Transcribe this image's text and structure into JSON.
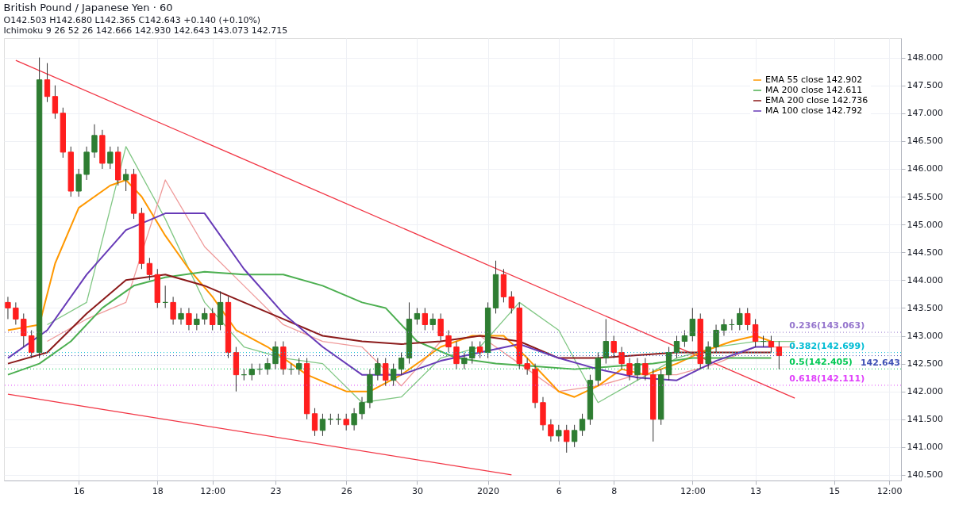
{
  "chart_data": {
    "type": "candlestick",
    "title": "British Pound / Japanese Yen · 60",
    "annotations": [
      "O142.503 H142.680 L142.365 C142.643 +0.140 (+0.10%)",
      "Ichimoku 9 26 52 26 142.666 142.930 142.643 143.073 142.715"
    ],
    "categories": [
      null,
      null,
      null,
      null,
      null,
      null,
      null,
      null,
      null,
      "16",
      null,
      null,
      null,
      null,
      null,
      null,
      null,
      null,
      null,
      "18",
      null,
      null,
      null,
      null,
      null,
      null,
      "12:00",
      null,
      null,
      null,
      null,
      null,
      null,
      null,
      "23",
      null,
      null,
      null,
      null,
      null,
      null,
      null,
      null,
      "26",
      null,
      null,
      null,
      null,
      null,
      null,
      null,
      null,
      "30",
      null,
      null,
      null,
      null,
      null,
      null,
      null,
      null,
      "2020",
      null,
      null,
      null,
      null,
      null,
      null,
      null,
      null,
      "6",
      null,
      null,
      null,
      null,
      null,
      null,
      "8",
      null,
      null,
      null,
      null,
      null,
      null,
      null,
      null,
      null,
      "12:00",
      null,
      null,
      null,
      null,
      null,
      null,
      null,
      "13",
      null,
      null,
      null,
      null,
      null,
      null,
      null,
      null,
      null,
      "15",
      null,
      null,
      null,
      null,
      null,
      null,
      "12:00",
      null
    ],
    "ohlc": [
      [
        143.6,
        143.7,
        143.3,
        143.5
      ],
      [
        143.5,
        143.6,
        143.2,
        143.3
      ],
      [
        143.3,
        143.4,
        142.8,
        143.0
      ],
      [
        143.0,
        143.1,
        142.6,
        142.7
      ],
      [
        142.7,
        148.0,
        142.6,
        147.6
      ],
      [
        147.6,
        147.9,
        147.2,
        147.3
      ],
      [
        147.3,
        147.5,
        146.9,
        147.0
      ],
      [
        147.0,
        147.1,
        146.2,
        146.3
      ],
      [
        146.3,
        146.4,
        145.5,
        145.6
      ],
      [
        145.6,
        146.0,
        145.5,
        145.9
      ],
      [
        145.9,
        146.4,
        145.8,
        146.3
      ],
      [
        146.3,
        146.8,
        146.2,
        146.6
      ],
      [
        146.6,
        146.7,
        146.0,
        146.1
      ],
      [
        146.1,
        146.4,
        146.0,
        146.3
      ],
      [
        146.3,
        146.4,
        145.7,
        145.8
      ],
      [
        145.8,
        146.0,
        145.6,
        145.9
      ],
      [
        145.9,
        146.0,
        145.1,
        145.2
      ],
      [
        145.2,
        145.3,
        144.2,
        144.3
      ],
      [
        144.3,
        144.4,
        144.0,
        144.1
      ],
      [
        144.1,
        144.2,
        143.5,
        143.6
      ],
      [
        143.6,
        143.9,
        143.5,
        143.6
      ],
      [
        143.6,
        143.7,
        143.2,
        143.3
      ],
      [
        143.3,
        143.5,
        143.2,
        143.4
      ],
      [
        143.4,
        143.5,
        143.1,
        143.2
      ],
      [
        143.2,
        143.4,
        143.1,
        143.3
      ],
      [
        143.3,
        143.5,
        143.2,
        143.4
      ],
      [
        143.4,
        143.5,
        143.1,
        143.2
      ],
      [
        143.2,
        143.8,
        143.1,
        143.6
      ],
      [
        143.6,
        143.7,
        142.6,
        142.7
      ],
      [
        142.7,
        142.8,
        142.0,
        142.3
      ],
      [
        142.3,
        142.4,
        142.2,
        142.3
      ],
      [
        142.3,
        142.5,
        142.2,
        142.4
      ],
      [
        142.4,
        142.5,
        142.3,
        142.4
      ],
      [
        142.4,
        142.6,
        142.3,
        142.5
      ],
      [
        142.5,
        142.9,
        142.4,
        142.8
      ],
      [
        142.8,
        142.9,
        142.3,
        142.4
      ],
      [
        142.4,
        142.5,
        142.3,
        142.4
      ],
      [
        142.4,
        142.6,
        142.3,
        142.5
      ],
      [
        142.5,
        142.6,
        141.5,
        141.6
      ],
      [
        141.6,
        141.7,
        141.2,
        141.3
      ],
      [
        141.3,
        141.6,
        141.2,
        141.5
      ],
      [
        141.5,
        141.6,
        141.4,
        141.5
      ],
      [
        141.5,
        141.6,
        141.4,
        141.5
      ],
      [
        141.5,
        141.6,
        141.3,
        141.4
      ],
      [
        141.4,
        141.7,
        141.3,
        141.6
      ],
      [
        141.6,
        141.9,
        141.5,
        141.8
      ],
      [
        141.8,
        142.4,
        141.7,
        142.3
      ],
      [
        142.3,
        142.6,
        142.2,
        142.5
      ],
      [
        142.5,
        142.6,
        142.1,
        142.2
      ],
      [
        142.2,
        142.5,
        142.1,
        142.4
      ],
      [
        142.4,
        142.7,
        142.3,
        142.6
      ],
      [
        142.6,
        143.6,
        142.5,
        143.3
      ],
      [
        143.3,
        143.5,
        143.2,
        143.4
      ],
      [
        143.4,
        143.5,
        143.1,
        143.2
      ],
      [
        143.2,
        143.4,
        143.1,
        143.3
      ],
      [
        143.3,
        143.4,
        142.9,
        143.0
      ],
      [
        143.0,
        143.1,
        142.7,
        142.8
      ],
      [
        142.8,
        142.9,
        142.4,
        142.5
      ],
      [
        142.5,
        142.7,
        142.4,
        142.6
      ],
      [
        142.6,
        142.9,
        142.5,
        142.8
      ],
      [
        142.8,
        142.9,
        142.6,
        142.7
      ],
      [
        142.7,
        143.6,
        142.6,
        143.5
      ],
      [
        143.5,
        144.35,
        143.4,
        144.1
      ],
      [
        144.1,
        144.2,
        143.6,
        143.7
      ],
      [
        143.7,
        143.8,
        143.4,
        143.5
      ],
      [
        143.5,
        143.6,
        142.4,
        142.5
      ],
      [
        142.5,
        142.6,
        142.3,
        142.4
      ],
      [
        142.4,
        142.5,
        141.7,
        141.8
      ],
      [
        141.8,
        141.9,
        141.3,
        141.4
      ],
      [
        141.4,
        141.5,
        141.1,
        141.2
      ],
      [
        141.2,
        141.4,
        141.1,
        141.3
      ],
      [
        141.3,
        141.4,
        140.9,
        141.1
      ],
      [
        141.1,
        141.4,
        141.0,
        141.3
      ],
      [
        141.3,
        141.6,
        141.2,
        141.5
      ],
      [
        141.5,
        142.3,
        141.4,
        142.2
      ],
      [
        142.2,
        142.7,
        142.1,
        142.6
      ],
      [
        142.6,
        143.3,
        142.5,
        142.9
      ],
      [
        142.9,
        143.0,
        142.6,
        142.7
      ],
      [
        142.7,
        142.8,
        142.4,
        142.5
      ],
      [
        142.5,
        142.6,
        142.2,
        142.3
      ],
      [
        142.3,
        142.6,
        142.2,
        142.5
      ],
      [
        142.5,
        142.6,
        142.2,
        142.3
      ],
      [
        142.3,
        142.4,
        141.1,
        141.5
      ],
      [
        141.5,
        142.4,
        141.4,
        142.3
      ],
      [
        142.3,
        142.8,
        142.2,
        142.7
      ],
      [
        142.7,
        143.0,
        142.6,
        142.9
      ],
      [
        142.9,
        143.1,
        142.8,
        143.0
      ],
      [
        143.0,
        143.5,
        142.9,
        143.3
      ],
      [
        143.3,
        143.4,
        142.4,
        142.5
      ],
      [
        142.5,
        142.9,
        142.4,
        142.8
      ],
      [
        142.8,
        143.2,
        142.7,
        143.1
      ],
      [
        143.1,
        143.3,
        143.0,
        143.2
      ],
      [
        143.2,
        143.3,
        143.1,
        143.2
      ],
      [
        143.2,
        143.5,
        143.1,
        143.4
      ],
      [
        143.4,
        143.5,
        143.1,
        143.2
      ],
      [
        143.2,
        143.3,
        142.8,
        142.9
      ],
      [
        142.9,
        143.0,
        142.8,
        142.9
      ],
      [
        142.9,
        143.0,
        142.7,
        142.8
      ],
      [
        142.8,
        142.9,
        142.4,
        142.643
      ],
      null,
      null,
      null,
      null,
      null,
      null,
      null,
      null,
      null,
      null,
      null,
      null,
      null,
      null,
      null
    ],
    "series": [
      {
        "name": "EMA 55 close 142.902",
        "type": "line",
        "color": "#ff9800",
        "values": [
          143.1,
          null,
          null,
          null,
          143.2,
          null,
          144.3,
          null,
          null,
          145.3,
          null,
          null,
          null,
          145.7,
          null,
          145.8,
          null,
          145.5,
          null,
          null,
          144.8,
          null,
          null,
          144.2,
          null,
          null,
          143.7,
          null,
          null,
          143.1,
          null,
          null,
          null,
          142.8,
          null,
          null,
          null,
          null,
          142.3,
          null,
          null,
          null,
          null,
          142.0,
          null,
          null,
          142.0,
          null,
          null,
          null,
          142.3,
          null,
          null,
          null,
          null,
          142.8,
          null,
          null,
          null,
          143.0,
          null,
          null,
          null,
          143.0,
          null,
          null,
          142.6,
          null,
          null,
          null,
          142.0,
          null,
          141.9,
          null,
          null,
          142.1,
          null,
          null,
          142.4,
          null,
          null,
          142.3,
          null,
          null,
          null,
          142.5,
          null,
          null,
          142.7,
          null,
          null,
          null,
          142.9,
          null,
          null,
          143.0,
          null,
          142.9,
          null,
          null,
          null,
          null,
          null,
          null,
          null,
          null,
          null,
          null,
          null,
          null,
          null,
          null,
          null,
          null
        ]
      },
      {
        "name": "MA 200 close 142.611",
        "type": "line",
        "color": "#4caf50",
        "values": [
          142.3,
          null,
          null,
          null,
          142.5,
          null,
          null,
          null,
          142.9,
          null,
          null,
          null,
          143.5,
          null,
          null,
          null,
          143.9,
          null,
          null,
          null,
          144.05,
          null,
          null,
          null,
          null,
          144.15,
          null,
          null,
          null,
          null,
          144.1,
          null,
          null,
          null,
          null,
          144.1,
          null,
          null,
          null,
          null,
          143.9,
          null,
          null,
          null,
          null,
          143.6,
          null,
          null,
          143.5,
          null,
          null,
          null,
          142.9,
          null,
          null,
          null,
          null,
          142.6,
          null,
          null,
          null,
          null,
          142.5,
          null,
          null,
          null,
          null,
          142.45,
          null,
          null,
          null,
          null,
          142.4,
          null,
          null,
          null,
          null,
          142.45,
          null,
          null,
          null,
          null,
          142.5,
          null,
          null,
          null,
          null,
          142.6,
          null,
          null,
          null,
          null,
          142.6,
          null,
          null,
          null,
          null,
          142.6,
          null,
          null,
          null,
          null,
          null,
          null,
          null,
          null,
          null,
          null,
          null,
          null,
          null,
          null,
          null,
          null
        ]
      },
      {
        "name": "EMA 200 close 142.736",
        "type": "line",
        "color": "#8b1a1a",
        "values": [
          142.5,
          null,
          null,
          null,
          null,
          142.7,
          null,
          null,
          null,
          null,
          143.4,
          null,
          null,
          null,
          null,
          144.0,
          null,
          null,
          null,
          null,
          144.1,
          null,
          null,
          null,
          null,
          143.9,
          null,
          null,
          null,
          null,
          143.6,
          null,
          null,
          null,
          null,
          143.3,
          null,
          null,
          null,
          null,
          143.0,
          null,
          null,
          null,
          null,
          142.9,
          null,
          null,
          null,
          null,
          142.85,
          null,
          null,
          null,
          null,
          142.9,
          null,
          null,
          null,
          null,
          143.0,
          null,
          null,
          null,
          null,
          142.9,
          null,
          null,
          null,
          null,
          142.6,
          null,
          null,
          null,
          null,
          142.6,
          null,
          null,
          null,
          null,
          142.65,
          null,
          null,
          null,
          null,
          142.7,
          null,
          null,
          null,
          null,
          142.7,
          null,
          null,
          null,
          null,
          142.7,
          null,
          142.7,
          null,
          null,
          null,
          null,
          null,
          null,
          null,
          null,
          null,
          null,
          null,
          null,
          null,
          null,
          null,
          null
        ]
      },
      {
        "name": "MA 100 close 142.792",
        "type": "line",
        "color": "#673ab7",
        "values": [
          142.6,
          null,
          null,
          null,
          null,
          143.1,
          null,
          null,
          null,
          null,
          144.1,
          null,
          null,
          null,
          null,
          144.9,
          null,
          null,
          null,
          null,
          145.2,
          null,
          null,
          null,
          null,
          145.2,
          null,
          null,
          null,
          null,
          144.2,
          null,
          null,
          null,
          null,
          143.4,
          null,
          null,
          null,
          null,
          142.8,
          null,
          null,
          null,
          null,
          142.3,
          null,
          null,
          null,
          null,
          142.3,
          null,
          null,
          null,
          null,
          142.55,
          null,
          null,
          null,
          null,
          142.7,
          null,
          null,
          null,
          null,
          142.85,
          null,
          null,
          null,
          null,
          142.6,
          null,
          null,
          null,
          null,
          142.4,
          null,
          null,
          null,
          null,
          142.25,
          null,
          null,
          null,
          null,
          142.2,
          null,
          null,
          null,
          null,
          142.55,
          null,
          null,
          null,
          null,
          142.8,
          null,
          142.8,
          null,
          null,
          null,
          null,
          null,
          null,
          null,
          null,
          null,
          null,
          null,
          null,
          null,
          null,
          null,
          null
        ]
      },
      {
        "type": "line",
        "color": "#81c784",
        "values": [
          null,
          null,
          null,
          null,
          null,
          143.2,
          null,
          null,
          null,
          null,
          143.6,
          null,
          null,
          null,
          null,
          146.4,
          null,
          null,
          null,
          null,
          145.1,
          null,
          null,
          null,
          null,
          143.6,
          null,
          null,
          null,
          null,
          142.8,
          null,
          null,
          null,
          null,
          142.6,
          null,
          null,
          null,
          null,
          142.5,
          null,
          null,
          null,
          null,
          141.8,
          null,
          null,
          null,
          null,
          141.9,
          null,
          null,
          null,
          null,
          142.6,
          null,
          null,
          null,
          null,
          142.8,
          null,
          null,
          null,
          null,
          143.6,
          null,
          null,
          null,
          null,
          143.1,
          null,
          null,
          null,
          null,
          141.8,
          null,
          null,
          null,
          null,
          142.2,
          null,
          null,
          null,
          null,
          142.6,
          null,
          null,
          null,
          null,
          142.8,
          null,
          null,
          null,
          null,
          142.9,
          null,
          null,
          null,
          null,
          142.9,
          null,
          null,
          null,
          null,
          null,
          null,
          null,
          null,
          null,
          null,
          null,
          null,
          null
        ]
      },
      {
        "type": "line",
        "color": "#ef9a9a",
        "values": [
          null,
          null,
          null,
          null,
          null,
          142.9,
          null,
          null,
          null,
          null,
          143.3,
          null,
          null,
          null,
          null,
          143.6,
          null,
          null,
          null,
          null,
          145.8,
          null,
          null,
          null,
          null,
          144.6,
          null,
          null,
          null,
          null,
          143.9,
          null,
          null,
          null,
          null,
          143.2,
          null,
          null,
          null,
          null,
          142.9,
          null,
          null,
          null,
          null,
          142.8,
          null,
          null,
          null,
          null,
          142.1,
          null,
          null,
          null,
          null,
          142.9,
          null,
          null,
          null,
          null,
          143.0,
          null,
          null,
          null,
          null,
          142.5,
          null,
          null,
          null,
          null,
          142.0,
          null,
          null,
          null,
          null,
          142.1,
          null,
          null,
          null,
          null,
          142.3,
          null,
          null,
          null,
          null,
          142.3,
          null,
          null,
          null,
          null,
          142.5,
          null,
          null,
          null,
          null,
          142.8,
          null,
          null,
          null,
          null,
          142.8,
          null,
          null,
          null,
          null,
          null,
          null,
          null,
          null,
          null,
          null,
          null,
          null,
          null
        ]
      },
      {
        "type": "line",
        "color": "#f23645",
        "values": [
          null,
          147.95,
          null,
          null,
          null,
          null,
          null,
          null,
          null,
          null,
          null,
          null,
          null,
          null,
          null,
          null,
          null,
          null,
          null,
          null,
          null,
          null,
          null,
          null,
          null,
          null,
          null,
          null,
          null,
          null,
          null,
          null,
          null,
          null,
          null,
          null,
          null,
          null,
          null,
          null,
          null,
          null,
          null,
          null,
          null,
          null,
          null,
          null,
          null,
          null,
          null,
          null,
          null,
          null,
          null,
          null,
          null,
          null,
          null,
          null,
          null,
          null,
          null,
          null,
          null,
          null,
          null,
          null,
          null,
          null,
          null,
          null,
          null,
          null,
          null,
          null,
          null,
          null,
          null,
          null,
          null,
          null,
          null,
          null,
          null,
          null,
          null,
          null,
          null,
          null,
          null,
          null,
          null,
          null,
          null,
          null,
          null,
          null,
          null,
          null,
          141.88,
          null,
          null,
          null,
          null,
          null,
          null,
          null,
          null,
          null,
          null,
          null,
          null,
          null
        ]
      },
      {
        "type": "line",
        "color": "#f23645",
        "values": [
          141.95,
          null,
          null,
          null,
          null,
          null,
          null,
          null,
          null,
          null,
          null,
          null,
          null,
          null,
          null,
          null,
          null,
          null,
          null,
          null,
          null,
          null,
          null,
          null,
          null,
          null,
          null,
          null,
          null,
          null,
          null,
          null,
          null,
          null,
          null,
          null,
          null,
          null,
          null,
          null,
          null,
          null,
          null,
          null,
          null,
          null,
          null,
          null,
          null,
          null,
          null,
          null,
          null,
          null,
          null,
          null,
          null,
          null,
          null,
          null,
          null,
          null,
          null,
          null,
          140.5,
          null,
          null,
          null,
          null,
          null,
          null,
          null,
          null,
          null,
          null,
          null,
          null,
          null,
          null,
          null,
          null,
          null,
          null,
          null,
          null,
          null,
          null,
          null,
          null,
          null,
          null,
          null,
          null,
          null,
          null,
          null,
          null,
          null,
          null,
          null,
          null,
          null,
          null,
          null,
          null,
          null,
          null,
          null,
          null,
          null,
          null,
          null,
          null,
          null
        ]
      }
    ],
    "ref_lines": [
      {
        "axis": "y",
        "value": 143.063,
        "label": "0.236(143.063)",
        "color": "#9575cd",
        "line_style": "dotted"
      },
      {
        "axis": "y",
        "value": 142.699,
        "label": "0.382(142.699)",
        "color": "#00bcd4",
        "line_style": "dotted"
      },
      {
        "axis": "y",
        "value": 142.405,
        "label": "0.5(142.405)",
        "color": "#00c853",
        "line_style": "dotted"
      },
      {
        "axis": "y",
        "value": 142.111,
        "label": "0.618(142.111)",
        "color": "#e040fb",
        "line_style": "dotted"
      },
      {
        "axis": "y",
        "value": 142.643,
        "label": "142.643",
        "color": "#3f51b5",
        "line_style": "dotted"
      }
    ],
    "ylim": [
      140.4,
      148.35
    ],
    "yticks": [
      {
        "value": 140.5,
        "label": "140.500"
      },
      {
        "value": 141,
        "label": "141.000"
      },
      {
        "value": 141.5,
        "label": "141.500"
      },
      {
        "value": 142,
        "label": "142.000"
      },
      {
        "value": 142.5,
        "label": "142.500"
      },
      {
        "value": 143,
        "label": "143.000"
      },
      {
        "value": 143.5,
        "label": "143.500"
      },
      {
        "value": 144,
        "label": "144.000"
      },
      {
        "value": 144.5,
        "label": "144.500"
      },
      {
        "value": 145,
        "label": "145.000"
      },
      {
        "value": 145.5,
        "label": "145.500"
      },
      {
        "value": 146,
        "label": "146.000"
      },
      {
        "value": 146.5,
        "label": "146.500"
      },
      {
        "value": 147,
        "label": "147.000"
      },
      {
        "value": 147.5,
        "label": "147.500"
      },
      {
        "value": 148,
        "label": "148.000"
      }
    ],
    "grid": true,
    "legend": "top right"
  }
}
